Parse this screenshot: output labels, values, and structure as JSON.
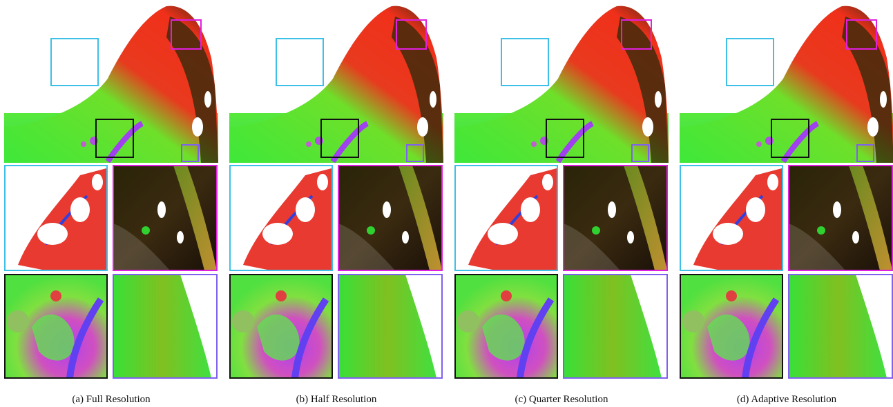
{
  "captions": [
    "(a)  Full Resolution",
    "(b)  Half Resolution",
    "(c)  Quarter Resolution",
    "(d)  Adaptive Resolution"
  ]
}
